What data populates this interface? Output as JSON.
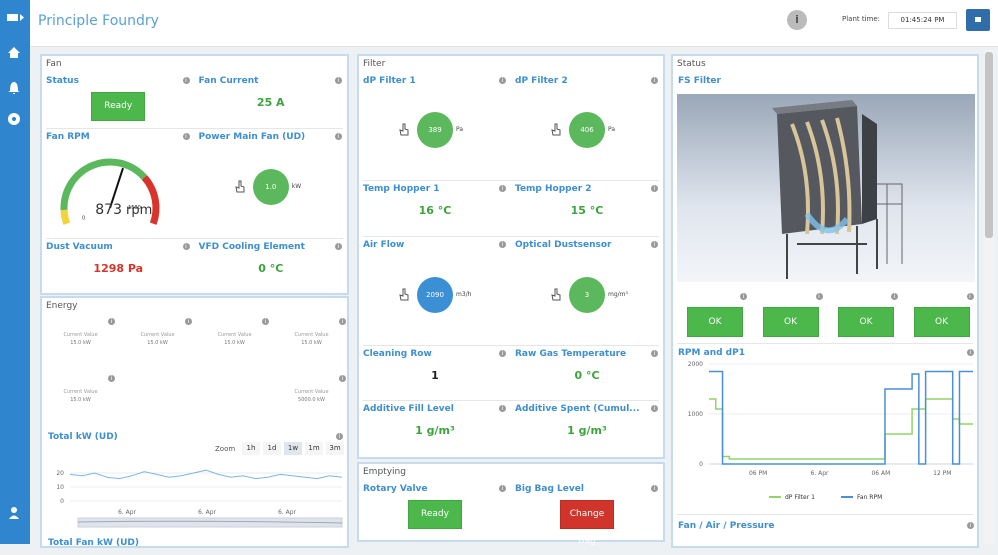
{
  "header": {
    "title": "Principle Foundry",
    "plant_time_label": "Plant time:",
    "plant_time": "01:45:24 PM"
  },
  "fan": {
    "title": "Fan",
    "widgets": [
      {
        "label": "Status",
        "button": "Ready",
        "color": "#4cb84c"
      },
      {
        "label": "Fan Current",
        "value": "25 A",
        "color": "#3da33d"
      },
      {
        "label": "Fan RPM",
        "gauge": {
          "value": 873,
          "unit": "rpm",
          "min": 0,
          "max": 1500
        }
      },
      {
        "label": "Power Main Fan (UD)",
        "circle": "1.0",
        "unit": "kW",
        "color": "#5cb85c"
      },
      {
        "label": "Dust Vacuum",
        "value": "1298 Pa",
        "color": "#d9342b"
      },
      {
        "label": "VFD Cooling Element",
        "value": "0 °C",
        "color": "#3da33d"
      }
    ]
  },
  "energy": {
    "title": "Energy",
    "tile_rows": [
      [
        {
          "label": "Current Value",
          "value": "15.0 kW"
        },
        {
          "label": "Current Value",
          "value": "15.0 kW"
        },
        {
          "label": "Current Value",
          "value": "15.0 kW"
        },
        {
          "label": "Current Value",
          "value": "15.0 kW"
        }
      ],
      [
        {
          "label": "Current Value",
          "value": "15.0 kW"
        },
        {
          "label": "Current Value",
          "value": "5000.0 kW"
        }
      ]
    ],
    "chart": {
      "type": "line",
      "title": "Total kW (UD)",
      "zoom_label": "Zoom",
      "zoom": [
        "1h",
        "1d",
        "1w",
        "1m",
        "3m"
      ],
      "zoom_active": 2,
      "color": "#7cb5ec",
      "values": [
        19,
        18,
        20,
        17,
        16,
        18,
        21,
        19,
        17,
        18,
        20,
        22,
        19,
        17,
        18,
        16,
        17,
        19,
        18,
        17,
        16,
        18,
        17
      ],
      "ylim": [
        0,
        25
      ],
      "yticks": [
        0,
        10,
        20
      ],
      "xticks": [
        "6. Apr",
        "6. Apr",
        "6. Apr"
      ]
    },
    "next_title": "Total Fan kW (UD)"
  },
  "filter": {
    "title": "Filter",
    "widgets": [
      {
        "label": "dP Filter 1",
        "circle": "389",
        "unit": "Pa",
        "color": "#5cb85c"
      },
      {
        "label": "dP Filter 2",
        "circle": "406",
        "unit": "Pa",
        "color": "#5cb85c"
      },
      {
        "label": "Temp Hopper 1",
        "value": "16 °C",
        "color": "#3da33d"
      },
      {
        "label": "Temp Hopper 2",
        "value": "15 °C",
        "color": "#3da33d"
      },
      {
        "label": "Air Flow",
        "circle": "2090",
        "unit": "m3/h",
        "color": "#3b8fd4"
      },
      {
        "label": "Optical Dustsensor",
        "circle": "3",
        "unit": "mg/m³",
        "color": "#5cb85c"
      },
      {
        "label": "Cleaning Row",
        "value": "1",
        "color": "#222222"
      },
      {
        "label": "Raw Gas Temperature",
        "value": "0 °C",
        "color": "#3da33d"
      },
      {
        "label": "Additive Fill Level",
        "value": "1 g/m³",
        "color": "#3da33d"
      },
      {
        "label": "Additive Spent (Cumul...",
        "value": "1 g/m³",
        "color": "#3da33d"
      }
    ]
  },
  "emptying": {
    "title": "Emptying",
    "widgets": [
      {
        "label": "Rotary Valve",
        "button": "Ready",
        "color": "#4cb84c"
      },
      {
        "label": "Big Bag Level",
        "button": "Change Bag",
        "color": "#d0342b"
      }
    ]
  },
  "status": {
    "title": "Status",
    "image_label": "FS Filter",
    "indicators": [
      "OK",
      "OK",
      "OK",
      "OK"
    ],
    "indicator_color": "#4cb84c",
    "chart": {
      "type": "line",
      "title": "RPM and dP1",
      "ylim": [
        0,
        2000
      ],
      "yticks": [
        0,
        1000,
        2000
      ],
      "xticks": [
        "06 PM",
        "6. Apr",
        "06 AM",
        "12 PM"
      ],
      "series": [
        {
          "name": "dP Filter 1",
          "color": "#90d46a",
          "values": [
            1300,
            1100,
            150,
            100,
            100,
            100,
            100,
            100,
            100,
            100,
            100,
            100,
            100,
            100,
            100,
            100,
            100,
            100,
            100,
            100,
            100,
            100,
            100,
            100,
            100,
            100,
            600,
            600,
            600,
            600,
            1100,
            1100,
            1300,
            1300,
            1300,
            1300,
            900,
            800,
            800,
            800
          ]
        },
        {
          "name": "Fan RPM",
          "color": "#4a90d9",
          "values": [
            1850,
            1850,
            0,
            0,
            0,
            0,
            0,
            0,
            0,
            0,
            0,
            0,
            0,
            0,
            0,
            0,
            0,
            0,
            0,
            0,
            0,
            0,
            0,
            0,
            0,
            0,
            1500,
            1500,
            1500,
            1500,
            1800,
            0,
            1850,
            1850,
            1850,
            1850,
            0,
            1850,
            1850,
            1850
          ]
        }
      ]
    },
    "next_title": "Fan / Air / Pressure"
  }
}
